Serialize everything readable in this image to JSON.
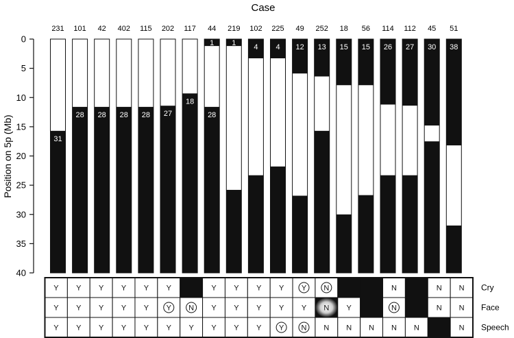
{
  "chart_data": {
    "type": "bar",
    "title": "Case",
    "ylabel": "Position on 5p (Mb)",
    "ylim": [
      0,
      40
    ],
    "yticks": [
      0,
      5,
      10,
      15,
      20,
      25,
      30,
      35,
      40
    ],
    "cases": [
      {
        "case": "231",
        "segments": [
          {
            "from": 0,
            "to": 15.7,
            "fill": "white"
          },
          {
            "from": 15.7,
            "to": 40,
            "fill": "black",
            "label": "31"
          }
        ]
      },
      {
        "case": "101",
        "segments": [
          {
            "from": 0,
            "to": 11.6,
            "fill": "white"
          },
          {
            "from": 11.6,
            "to": 40,
            "fill": "black",
            "label": "28"
          }
        ]
      },
      {
        "case": "42",
        "segments": [
          {
            "from": 0,
            "to": 11.6,
            "fill": "white"
          },
          {
            "from": 11.6,
            "to": 40,
            "fill": "black",
            "label": "28"
          }
        ]
      },
      {
        "case": "402",
        "segments": [
          {
            "from": 0,
            "to": 11.6,
            "fill": "white"
          },
          {
            "from": 11.6,
            "to": 40,
            "fill": "black",
            "label": "28"
          }
        ]
      },
      {
        "case": "115",
        "segments": [
          {
            "from": 0,
            "to": 11.6,
            "fill": "white"
          },
          {
            "from": 11.6,
            "to": 40,
            "fill": "black",
            "label": "28"
          }
        ]
      },
      {
        "case": "202",
        "segments": [
          {
            "from": 0,
            "to": 11.4,
            "fill": "white"
          },
          {
            "from": 11.4,
            "to": 40,
            "fill": "black",
            "label": "27"
          }
        ]
      },
      {
        "case": "117",
        "segments": [
          {
            "from": 0,
            "to": 9.3,
            "fill": "white"
          },
          {
            "from": 9.3,
            "to": 40,
            "fill": "black",
            "label": "18"
          }
        ]
      },
      {
        "case": "44",
        "segments": [
          {
            "from": 0,
            "to": 1.2,
            "fill": "black",
            "label": "1"
          },
          {
            "from": 1.2,
            "to": 11.6,
            "fill": "white"
          },
          {
            "from": 11.6,
            "to": 40,
            "fill": "black",
            "label": "28"
          }
        ]
      },
      {
        "case": "219",
        "segments": [
          {
            "from": 0,
            "to": 1.2,
            "fill": "black",
            "label": "1"
          },
          {
            "from": 1.2,
            "to": 25.8,
            "fill": "white"
          },
          {
            "from": 25.8,
            "to": 40,
            "fill": "black"
          }
        ]
      },
      {
        "case": "102",
        "segments": [
          {
            "from": 0,
            "to": 3.3,
            "fill": "black",
            "label": "4"
          },
          {
            "from": 3.3,
            "to": 23.3,
            "fill": "white"
          },
          {
            "from": 23.3,
            "to": 40,
            "fill": "black"
          }
        ]
      },
      {
        "case": "225",
        "segments": [
          {
            "from": 0,
            "to": 3.3,
            "fill": "black",
            "label": "4"
          },
          {
            "from": 3.3,
            "to": 21.8,
            "fill": "white"
          },
          {
            "from": 21.8,
            "to": 40,
            "fill": "black"
          }
        ]
      },
      {
        "case": "49",
        "segments": [
          {
            "from": 0,
            "to": 5.9,
            "fill": "black",
            "label": "12"
          },
          {
            "from": 5.9,
            "to": 26.8,
            "fill": "white"
          },
          {
            "from": 26.8,
            "to": 40,
            "fill": "black"
          }
        ]
      },
      {
        "case": "252",
        "segments": [
          {
            "from": 0,
            "to": 6.4,
            "fill": "black",
            "label": "13"
          },
          {
            "from": 6.4,
            "to": 15.7,
            "fill": "white"
          },
          {
            "from": 15.7,
            "to": 40,
            "fill": "black"
          }
        ]
      },
      {
        "case": "18",
        "segments": [
          {
            "from": 0,
            "to": 7.9,
            "fill": "black",
            "label": "15"
          },
          {
            "from": 7.9,
            "to": 30.0,
            "fill": "white"
          },
          {
            "from": 30.0,
            "to": 40,
            "fill": "black"
          }
        ]
      },
      {
        "case": "56",
        "segments": [
          {
            "from": 0,
            "to": 7.9,
            "fill": "black",
            "label": "15"
          },
          {
            "from": 7.9,
            "to": 26.7,
            "fill": "white"
          },
          {
            "from": 26.7,
            "to": 40,
            "fill": "black"
          }
        ]
      },
      {
        "case": "114",
        "segments": [
          {
            "from": 0,
            "to": 11.2,
            "fill": "black",
            "label": "26"
          },
          {
            "from": 11.2,
            "to": 23.3,
            "fill": "white"
          },
          {
            "from": 23.3,
            "to": 40,
            "fill": "black"
          }
        ]
      },
      {
        "case": "112",
        "segments": [
          {
            "from": 0,
            "to": 11.4,
            "fill": "black",
            "label": "27"
          },
          {
            "from": 11.4,
            "to": 23.3,
            "fill": "white"
          },
          {
            "from": 23.3,
            "to": 40,
            "fill": "black"
          }
        ]
      },
      {
        "case": "45",
        "segments": [
          {
            "from": 0,
            "to": 14.8,
            "fill": "black",
            "label": "30"
          },
          {
            "from": 14.8,
            "to": 17.5,
            "fill": "white"
          },
          {
            "from": 17.5,
            "to": 40,
            "fill": "black"
          }
        ]
      },
      {
        "case": "51",
        "segments": [
          {
            "from": 0,
            "to": 18.2,
            "fill": "black",
            "label": "38"
          },
          {
            "from": 18.2,
            "to": 31.9,
            "fill": "white"
          },
          {
            "from": 31.9,
            "to": 40,
            "fill": "black"
          }
        ]
      }
    ],
    "phenotype_table": {
      "rows": [
        {
          "label": "Cry",
          "cells": [
            {
              "v": "Y"
            },
            {
              "v": "Y"
            },
            {
              "v": "Y"
            },
            {
              "v": "Y"
            },
            {
              "v": "Y"
            },
            {
              "v": "Y"
            },
            {
              "v": "",
              "black": true
            },
            {
              "v": "Y"
            },
            {
              "v": "Y"
            },
            {
              "v": "Y"
            },
            {
              "v": "Y"
            },
            {
              "v": "Y",
              "circled": true
            },
            {
              "v": "N",
              "circled": true
            },
            {
              "v": "",
              "black": true
            },
            {
              "v": "",
              "black": true
            },
            {
              "v": "N"
            },
            {
              "v": "",
              "black": true
            },
            {
              "v": "N"
            },
            {
              "v": "N"
            }
          ]
        },
        {
          "label": "Face",
          "cells": [
            {
              "v": "Y"
            },
            {
              "v": "Y"
            },
            {
              "v": "Y"
            },
            {
              "v": "Y"
            },
            {
              "v": "Y"
            },
            {
              "v": "Y",
              "circled": true
            },
            {
              "v": "N",
              "circled": true
            },
            {
              "v": "Y"
            },
            {
              "v": "Y"
            },
            {
              "v": "Y"
            },
            {
              "v": "Y"
            },
            {
              "v": "Y"
            },
            {
              "v": "N",
              "glow": true
            },
            {
              "v": "Y"
            },
            {
              "v": "",
              "black": true
            },
            {
              "v": "N",
              "circled": true
            },
            {
              "v": "",
              "black": true
            },
            {
              "v": "N"
            },
            {
              "v": "N"
            }
          ]
        },
        {
          "label": "Speech",
          "cells": [
            {
              "v": "Y"
            },
            {
              "v": "Y"
            },
            {
              "v": "Y"
            },
            {
              "v": "Y"
            },
            {
              "v": "Y"
            },
            {
              "v": "Y"
            },
            {
              "v": "Y"
            },
            {
              "v": "Y"
            },
            {
              "v": "Y"
            },
            {
              "v": "Y"
            },
            {
              "v": "Y",
              "circled": true
            },
            {
              "v": "N",
              "circled": true
            },
            {
              "v": "N"
            },
            {
              "v": "N"
            },
            {
              "v": "N"
            },
            {
              "v": "N"
            },
            {
              "v": "N"
            },
            {
              "v": "",
              "black": true
            },
            {
              "v": "N"
            }
          ]
        }
      ]
    }
  }
}
